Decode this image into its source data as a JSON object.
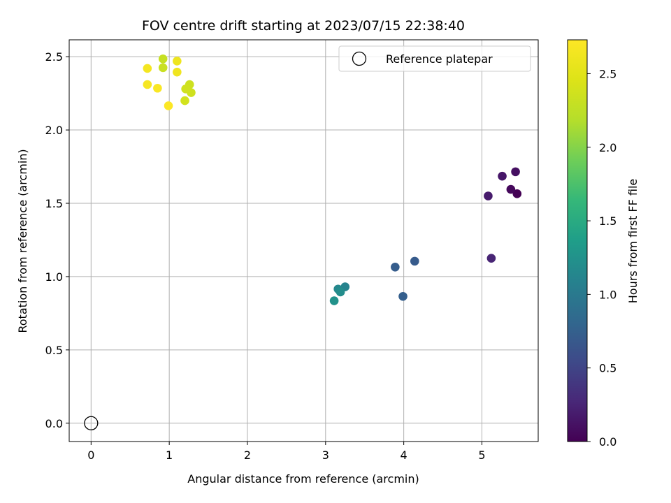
{
  "chart_data": {
    "type": "scatter",
    "title": "FOV centre drift starting at 2023/07/15 22:38:40",
    "xlabel": "Angular distance from reference (arcmin)",
    "ylabel": "Rotation from reference (arcmin)",
    "xlim": [
      -0.28,
      5.72
    ],
    "ylim": [
      -0.125,
      2.615
    ],
    "xticks": [
      0,
      1,
      2,
      3,
      4,
      5
    ],
    "yticks": [
      0.0,
      0.5,
      1.0,
      1.5,
      2.0,
      2.5
    ],
    "xtick_labels": [
      "0",
      "1",
      "2",
      "3",
      "4",
      "5"
    ],
    "ytick_labels": [
      "0.0",
      "0.5",
      "1.0",
      "1.5",
      "2.0",
      "2.5"
    ],
    "grid": true,
    "legend": {
      "position": "top-right",
      "entries": [
        "Reference platepar"
      ]
    },
    "reference_point": {
      "x": 0.0,
      "y": 0.0
    },
    "colorbar": {
      "label": "Hours from first FF file",
      "colormap": "viridis",
      "range": [
        0.0,
        2.73
      ],
      "ticks": [
        0.0,
        0.5,
        1.0,
        1.5,
        2.0,
        2.5
      ],
      "tick_labels": [
        "0.0",
        "0.5",
        "1.0",
        "1.5",
        "2.0",
        "2.5"
      ]
    },
    "points": [
      {
        "x": 5.45,
        "y": 1.565,
        "c": 0.0
      },
      {
        "x": 5.37,
        "y": 1.595,
        "c": 0.05
      },
      {
        "x": 5.43,
        "y": 1.715,
        "c": 0.1
      },
      {
        "x": 5.26,
        "y": 1.685,
        "c": 0.15
      },
      {
        "x": 5.08,
        "y": 1.55,
        "c": 0.18
      },
      {
        "x": 5.12,
        "y": 1.125,
        "c": 0.25
      },
      {
        "x": 4.14,
        "y": 1.105,
        "c": 0.7
      },
      {
        "x": 3.89,
        "y": 1.065,
        "c": 0.72
      },
      {
        "x": 3.99,
        "y": 0.865,
        "c": 0.74
      },
      {
        "x": 3.25,
        "y": 0.93,
        "c": 1.1
      },
      {
        "x": 3.16,
        "y": 0.915,
        "c": 1.15
      },
      {
        "x": 3.19,
        "y": 0.895,
        "c": 1.2
      },
      {
        "x": 3.11,
        "y": 0.835,
        "c": 1.25
      },
      {
        "x": 0.92,
        "y": 2.485,
        "c": 2.3
      },
      {
        "x": 0.92,
        "y": 2.425,
        "c": 2.32
      },
      {
        "x": 1.26,
        "y": 2.31,
        "c": 2.35
      },
      {
        "x": 1.28,
        "y": 2.255,
        "c": 2.36
      },
      {
        "x": 1.21,
        "y": 2.28,
        "c": 2.37
      },
      {
        "x": 1.2,
        "y": 2.2,
        "c": 2.38
      },
      {
        "x": 1.1,
        "y": 2.47,
        "c": 2.6
      },
      {
        "x": 1.1,
        "y": 2.395,
        "c": 2.62
      },
      {
        "x": 0.72,
        "y": 2.42,
        "c": 2.65
      },
      {
        "x": 0.72,
        "y": 2.31,
        "c": 2.67
      },
      {
        "x": 0.85,
        "y": 2.285,
        "c": 2.7
      },
      {
        "x": 0.99,
        "y": 2.165,
        "c": 2.72
      }
    ]
  }
}
